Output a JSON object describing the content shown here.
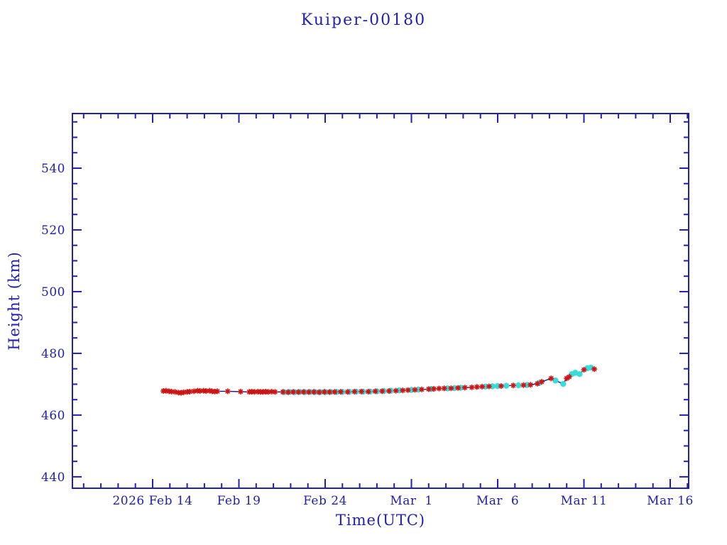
{
  "colors": {
    "ink": "#2121ad",
    "line": "#101095",
    "red_marker": "#cd1414",
    "cyan_marker": "#38dcdc",
    "background": "#ffffff"
  },
  "chart_data": {
    "type": "line",
    "title": "Kuiper-00180",
    "xlabel": "Time(UTC)",
    "ylabel": "Height (km)",
    "grid": false,
    "legend": "none",
    "x_axis": {
      "unit": "days since 2026 Feb 14 00:00 UTC",
      "range_days": [
        -4.65,
        31.07
      ],
      "minor_tick_interval_days": 1,
      "major_ticks": [
        {
          "day": 0,
          "label": "2026 Feb 14"
        },
        {
          "day": 5,
          "label": "Feb 19"
        },
        {
          "day": 10,
          "label": "Feb 24"
        },
        {
          "day": 15,
          "label": "Mar  1"
        },
        {
          "day": 20,
          "label": "Mar  6"
        },
        {
          "day": 25,
          "label": "Mar 11"
        },
        {
          "day": 30,
          "label": "Mar 16"
        }
      ]
    },
    "y_axis": {
      "range": [
        436.3,
        557.7
      ],
      "major_ticks": [
        440,
        460,
        480,
        500,
        520,
        540
      ],
      "minor_tick_interval": 5
    },
    "series": [
      {
        "name": "cyan-marker-series",
        "marker": "asterisk",
        "color_key": "cyan_marker",
        "points": [
          [
            7.6,
            467.45
          ],
          [
            7.9,
            467.5
          ],
          [
            8.2,
            467.45
          ],
          [
            8.5,
            467.5
          ],
          [
            8.8,
            467.45
          ],
          [
            9.1,
            467.5
          ],
          [
            9.4,
            467.45
          ],
          [
            9.7,
            467.45
          ],
          [
            10.0,
            467.45
          ],
          [
            10.3,
            467.5
          ],
          [
            10.65,
            467.5
          ],
          [
            11.0,
            467.5
          ],
          [
            11.4,
            467.55
          ],
          [
            11.8,
            467.6
          ],
          [
            12.2,
            467.6
          ],
          [
            12.6,
            467.65
          ],
          [
            13.0,
            467.7
          ],
          [
            13.4,
            467.8
          ],
          [
            13.8,
            467.9
          ],
          [
            14.3,
            468.0
          ],
          [
            15.0,
            468.15
          ],
          [
            15.4,
            468.25
          ],
          [
            16.15,
            468.45
          ],
          [
            17.1,
            468.65
          ],
          [
            17.5,
            468.75
          ],
          [
            17.85,
            468.85
          ],
          [
            19.3,
            469.25
          ],
          [
            19.7,
            469.35
          ],
          [
            20.0,
            469.4
          ],
          [
            20.5,
            469.5
          ],
          [
            21.2,
            469.65
          ],
          [
            21.7,
            469.75
          ],
          [
            22.4,
            470.4
          ],
          [
            23.35,
            471.2
          ],
          [
            23.8,
            470.1
          ],
          [
            24.3,
            473.3
          ],
          [
            24.5,
            473.7
          ],
          [
            24.75,
            473.3
          ],
          [
            25.2,
            475.2
          ],
          [
            25.4,
            475.4
          ]
        ]
      },
      {
        "name": "red-asterisk-series",
        "marker": "asterisk",
        "color_key": "red_marker",
        "points": [
          [
            0.62,
            467.8
          ],
          [
            0.78,
            467.9
          ],
          [
            0.95,
            467.7
          ],
          [
            1.1,
            467.6
          ],
          [
            1.3,
            467.5
          ],
          [
            1.5,
            467.3
          ],
          [
            1.65,
            467.2
          ],
          [
            1.8,
            467.4
          ],
          [
            2.0,
            467.5
          ],
          [
            2.15,
            467.6
          ],
          [
            2.4,
            467.7
          ],
          [
            2.6,
            467.9
          ],
          [
            2.75,
            467.8
          ],
          [
            2.95,
            467.9
          ],
          [
            3.1,
            467.8
          ],
          [
            3.3,
            467.9
          ],
          [
            3.45,
            467.7
          ],
          [
            3.6,
            467.6
          ],
          [
            3.75,
            467.7
          ],
          [
            4.35,
            467.7
          ],
          [
            5.1,
            467.6
          ],
          [
            5.6,
            467.5
          ],
          [
            5.75,
            467.6
          ],
          [
            5.9,
            467.5
          ],
          [
            6.1,
            467.6
          ],
          [
            6.25,
            467.5
          ],
          [
            6.4,
            467.5
          ],
          [
            6.55,
            467.6
          ],
          [
            6.7,
            467.5
          ],
          [
            6.9,
            467.6
          ],
          [
            7.1,
            467.5
          ],
          [
            7.55,
            467.5
          ],
          [
            7.85,
            467.4
          ],
          [
            8.15,
            467.5
          ],
          [
            8.45,
            467.45
          ],
          [
            8.75,
            467.5
          ],
          [
            9.05,
            467.45
          ],
          [
            9.35,
            467.5
          ],
          [
            9.65,
            467.4
          ],
          [
            9.95,
            467.5
          ],
          [
            10.25,
            467.45
          ],
          [
            10.55,
            467.5
          ],
          [
            10.9,
            467.55
          ],
          [
            11.3,
            467.5
          ],
          [
            11.7,
            467.6
          ],
          [
            12.1,
            467.65
          ],
          [
            12.5,
            467.6
          ],
          [
            12.9,
            467.7
          ],
          [
            13.3,
            467.75
          ],
          [
            13.7,
            467.8
          ],
          [
            14.1,
            467.9
          ],
          [
            14.5,
            468.0
          ],
          [
            14.8,
            468.1
          ],
          [
            15.2,
            468.2
          ],
          [
            15.6,
            468.3
          ],
          [
            16.0,
            468.4
          ],
          [
            16.3,
            468.5
          ],
          [
            16.6,
            468.6
          ],
          [
            16.9,
            468.65
          ],
          [
            17.3,
            468.7
          ],
          [
            17.7,
            468.8
          ],
          [
            18.1,
            468.9
          ],
          [
            18.5,
            469.0
          ],
          [
            18.8,
            469.1
          ],
          [
            19.1,
            469.2
          ],
          [
            19.5,
            469.3
          ],
          [
            20.2,
            469.4
          ],
          [
            20.9,
            469.6
          ],
          [
            21.5,
            469.7
          ],
          [
            21.9,
            469.8
          ],
          [
            22.3,
            470.2
          ],
          [
            22.55,
            470.8
          ],
          [
            23.1,
            471.9
          ],
          [
            24.0,
            471.9
          ],
          [
            24.15,
            472.4
          ],
          [
            25.0,
            474.7
          ],
          [
            25.6,
            474.9
          ]
        ]
      }
    ]
  }
}
